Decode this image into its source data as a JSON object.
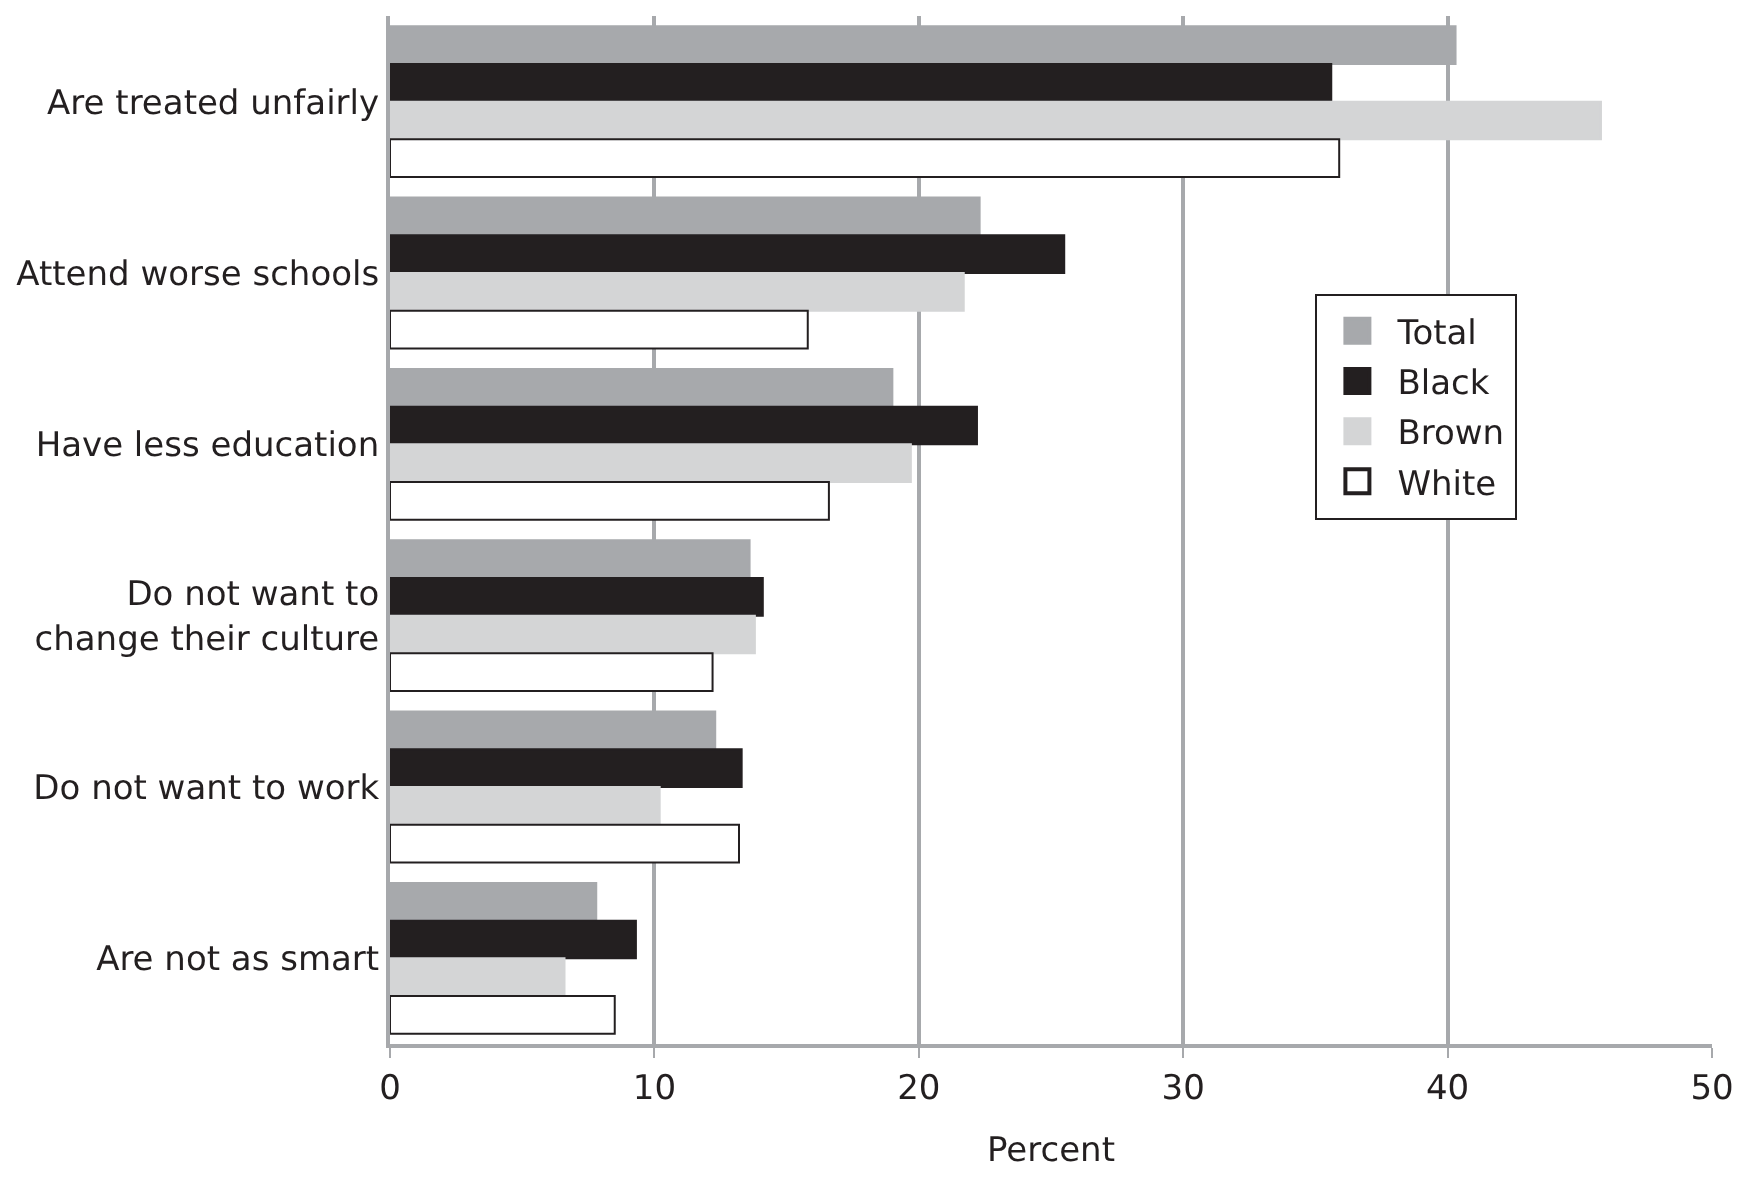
{
  "chart_data": {
    "type": "bar",
    "orientation": "horizontal",
    "xlabel": "Percent",
    "categories": [
      "Are treated unfairly",
      "Attend worse schools",
      "Have less education",
      "Do not want to\nchange their culture",
      "Do not want to work",
      "Are not as smart"
    ],
    "series": [
      {
        "name": "Total",
        "color": "#a7a9ac",
        "values": [
          40.3,
          22.3,
          19.0,
          13.6,
          12.3,
          7.8
        ]
      },
      {
        "name": "Black",
        "color": "#231f20",
        "values": [
          35.6,
          25.5,
          22.2,
          14.1,
          13.3,
          9.3
        ]
      },
      {
        "name": "Brown",
        "color": "#d4d5d6",
        "values": [
          45.8,
          21.7,
          19.7,
          13.8,
          10.2,
          6.6
        ]
      },
      {
        "name": "White",
        "color": "#ffffff",
        "values": [
          35.9,
          15.8,
          16.6,
          12.2,
          13.2,
          8.5
        ]
      }
    ],
    "xlim": [
      0,
      50
    ],
    "xticks": [
      0,
      10,
      20,
      30,
      40,
      50
    ],
    "grid": "x",
    "legend": "right"
  }
}
